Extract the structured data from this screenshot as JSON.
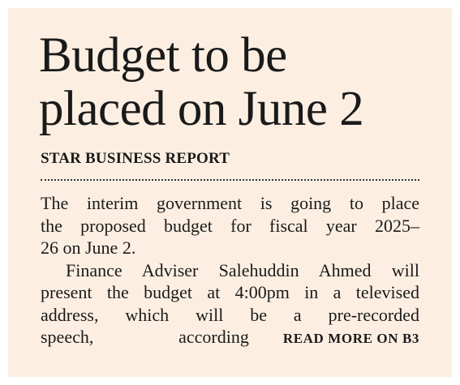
{
  "headline": {
    "lines": [
      "Budget to be",
      "placed on June 2"
    ]
  },
  "byline": "STAR BUSINESS REPORT",
  "body": {
    "paragraphs": [
      {
        "lines": [
          "The interim government is going to place",
          "the proposed budget for fiscal year 2025–",
          "26 on June 2."
        ]
      },
      {
        "lines": [
          "Finance Adviser Salehuddin Ahmed will",
          "present the budget at 4:00pm in a televised",
          "address, which will be a pre-recorded",
          "speech, according"
        ]
      }
    ]
  },
  "read_more": "READ MORE ON B3"
}
